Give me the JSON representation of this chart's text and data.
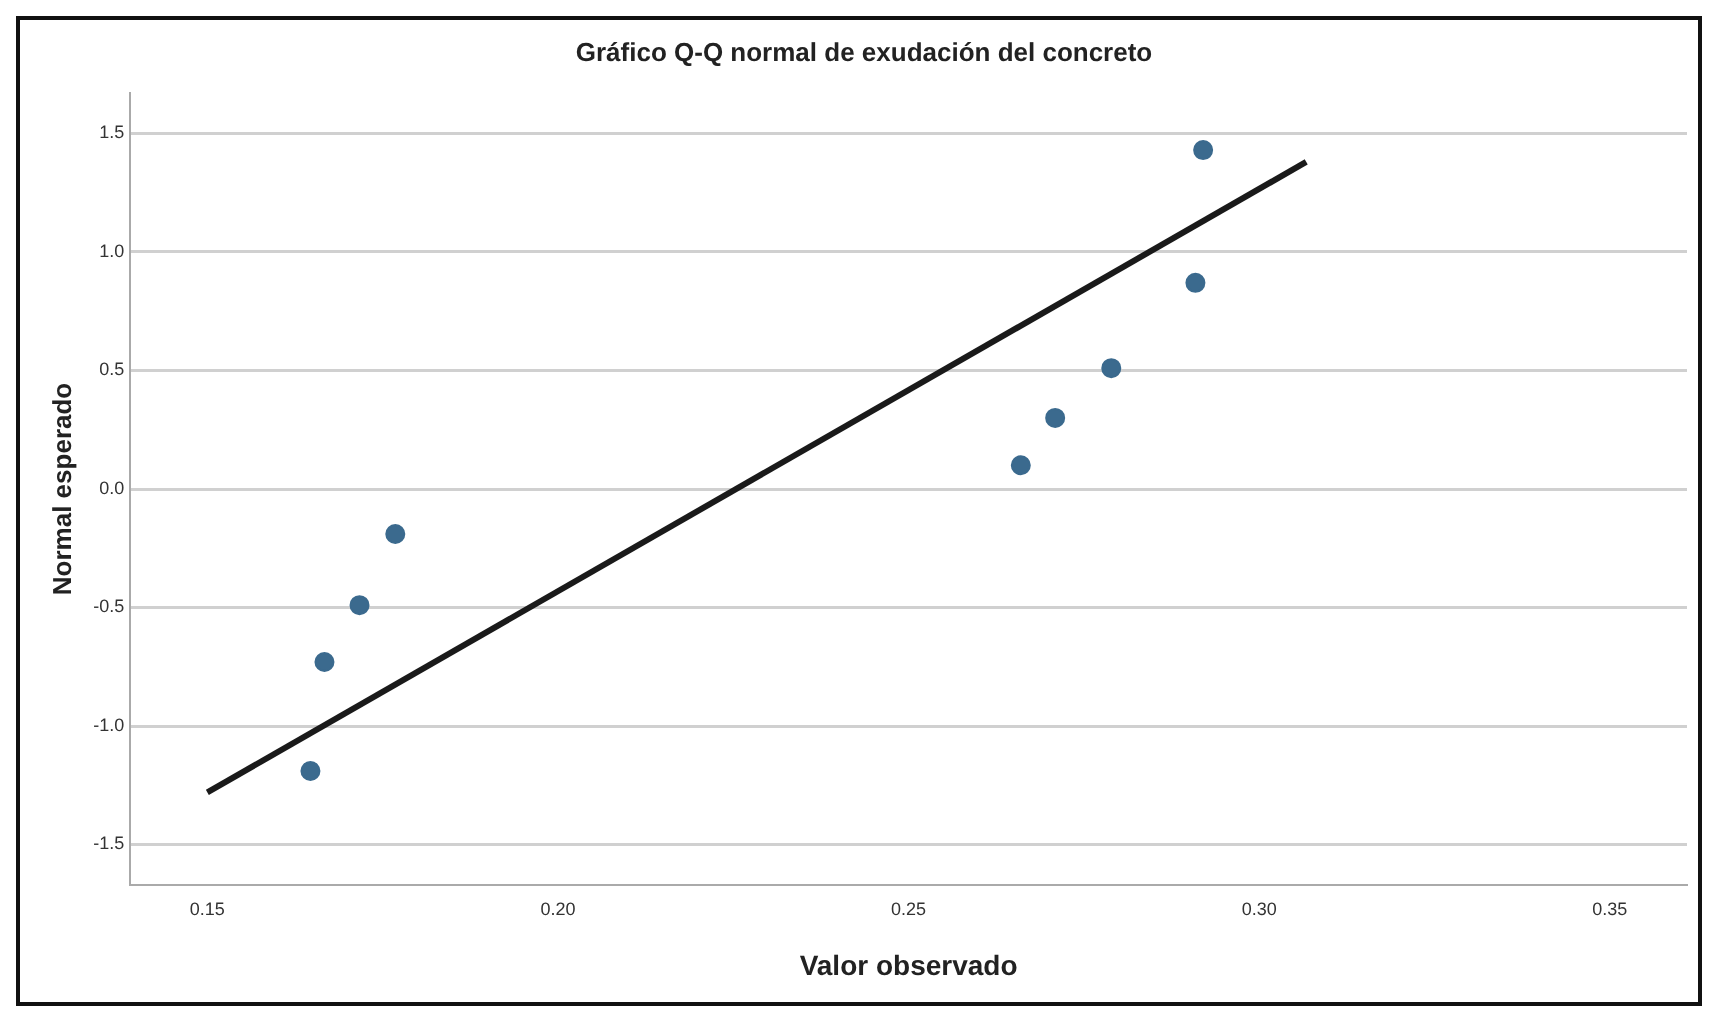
{
  "chart_data": {
    "type": "scatter",
    "title": "Gráfico Q-Q normal de exudación del concreto",
    "xlabel": "Valor observado",
    "ylabel": "Normal esperado",
    "series": [
      {
        "color": "#3b6a8e",
        "x": [
          0.1647,
          0.1667,
          0.1717,
          0.1768,
          0.266,
          0.2709,
          0.2789,
          0.2909,
          0.292
        ],
        "values": [
          -1.19,
          -0.73,
          -0.49,
          -0.19,
          0.1,
          0.3,
          0.51,
          0.87,
          1.43
        ]
      },
      {
        "type": "line",
        "color": "#1a1a1a",
        "x": [
          0.15,
          0.3067
        ],
        "values": [
          -1.28,
          1.38
        ],
        "marker": "none"
      }
    ],
    "xlim": [
      0.139,
      0.361
    ],
    "ylim": [
      -1.67,
      1.67
    ],
    "xticks": [
      {
        "value": 0.15,
        "label": "0.15"
      },
      {
        "value": 0.2,
        "label": "0.20"
      },
      {
        "value": 0.25,
        "label": "0.25"
      },
      {
        "value": 0.3,
        "label": "0.30"
      },
      {
        "value": 0.35,
        "label": "0.35"
      }
    ],
    "yticks": [
      {
        "value": -1.5,
        "label": "-1.5"
      },
      {
        "value": -1,
        "label": "-1.0"
      },
      {
        "value": -0.5,
        "label": "-0.5"
      },
      {
        "value": 0,
        "label": "0.0"
      },
      {
        "value": 0.5,
        "label": "0.5"
      },
      {
        "value": 1,
        "label": "1.0"
      },
      {
        "value": 1.5,
        "label": "1.5"
      }
    ],
    "grid": "y",
    "legend": false,
    "marker": "circle"
  }
}
